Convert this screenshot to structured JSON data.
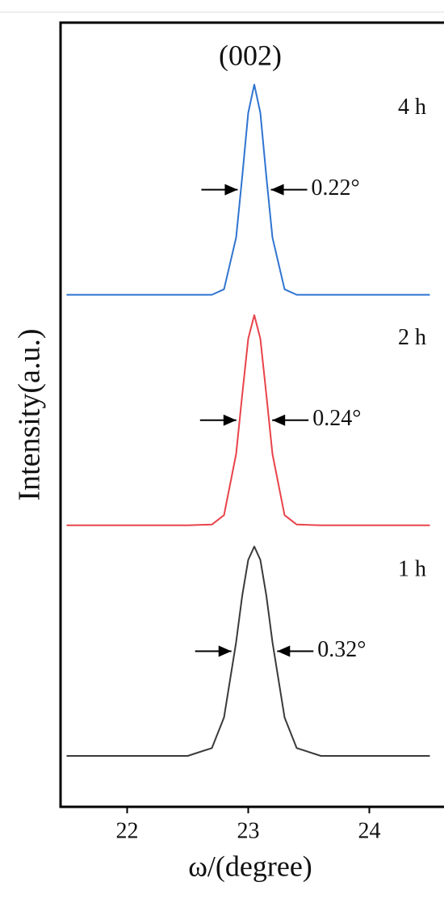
{
  "chart_data": {
    "type": "line",
    "title": "(002)",
    "x_label": "ω/(degree)",
    "y_label": "Intensity(a.u.)",
    "xlim": [
      21.45,
      24.55
    ],
    "xticks": [
      22,
      23,
      24
    ],
    "ylim": [
      0,
      100
    ],
    "x": [
      21.5,
      22,
      22.5,
      22.7,
      22.8,
      22.9,
      22.95,
      23.0,
      23.05,
      23.1,
      23.15,
      23.2,
      23.3,
      23.4,
      23.6,
      24,
      24.5
    ],
    "series": [
      {
        "name": "1 h",
        "color": "#3a3a3a",
        "annotation": "0.32°",
        "values": [
          6.5,
          6.5,
          6.5,
          7.5,
          11.4,
          21.0,
          26.9,
          31.5,
          33.2,
          31.5,
          26.9,
          21.0,
          11.4,
          7.5,
          6.5,
          6.5,
          6.5
        ]
      },
      {
        "name": "2 h",
        "color": "#e8434a",
        "annotation": "0.24°",
        "values": [
          35.9,
          35.9,
          35.9,
          36.0,
          37.2,
          45.0,
          52.5,
          59.7,
          62.7,
          59.7,
          52.5,
          45.0,
          37.2,
          36.0,
          35.9,
          35.9,
          35.9
        ]
      },
      {
        "name": "4 h",
        "color": "#2f74d0",
        "annotation": "0.22°",
        "values": [
          65.3,
          65.3,
          65.3,
          65.3,
          66.0,
          72.6,
          80.3,
          88.5,
          92.1,
          88.5,
          80.3,
          72.6,
          66.0,
          65.3,
          65.3,
          65.3,
          65.3
        ]
      }
    ]
  }
}
